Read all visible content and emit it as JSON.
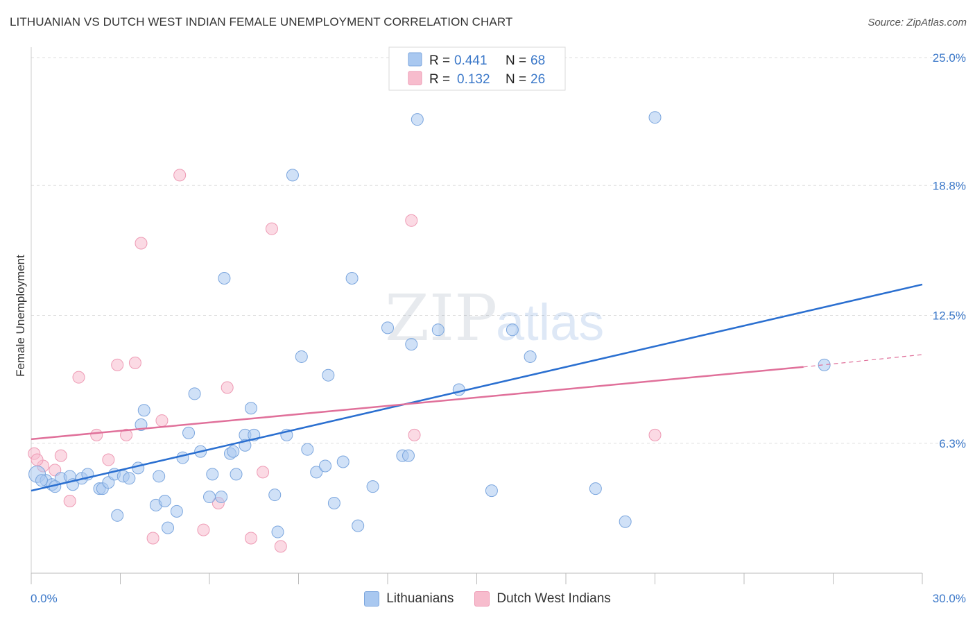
{
  "title": "LITHUANIAN VS DUTCH WEST INDIAN FEMALE UNEMPLOYMENT CORRELATION CHART",
  "source": "Source: ZipAtlas.com",
  "watermark": {
    "zip": "ZIP",
    "atlas": "atlas"
  },
  "legend": {
    "r_label": "R =",
    "n_label": "N =",
    "rows": [
      {
        "r": "0.441",
        "n": "68"
      },
      {
        "r": "0.132",
        "n": "26"
      }
    ]
  },
  "bottom_legend": [
    "Lithuanians",
    "Dutch West Indians"
  ],
  "colors": {
    "blue_fill": "#a9c8f0",
    "blue_stroke": "#7ba6de",
    "blue_line": "#2a6fd0",
    "pink_fill": "#f7bccd",
    "pink_stroke": "#ee9ab4",
    "pink_line": "#e0709a",
    "tick": "#3b78c9",
    "grid": "#dddddd"
  },
  "chart_data": {
    "type": "scatter",
    "title": "LITHUANIAN VS DUTCH WEST INDIAN FEMALE UNEMPLOYMENT CORRELATION CHART",
    "xlabel": "",
    "ylabel": "Female Unemployment",
    "xlim": [
      0,
      30
    ],
    "ylim": [
      0,
      25
    ],
    "x_tick_labels": [
      "0.0%",
      "30.0%"
    ],
    "y_ticks": [
      6.3,
      12.5,
      18.8,
      25.0
    ],
    "y_tick_labels": [
      "6.3%",
      "12.5%",
      "18.8%",
      "25.0%"
    ],
    "grid": "horizontal dashed",
    "legend_position": "top-center",
    "series": [
      {
        "name": "Lithuanians",
        "r": 0.441,
        "n": 68,
        "trend": {
          "x": [
            0,
            30
          ],
          "y": [
            4.0,
            14.0
          ]
        },
        "points": [
          [
            0.2,
            4.8
          ],
          [
            0.5,
            4.5
          ],
          [
            0.7,
            4.3
          ],
          [
            1.0,
            4.6
          ],
          [
            1.3,
            4.7
          ],
          [
            1.4,
            4.3
          ],
          [
            1.7,
            4.6
          ],
          [
            1.9,
            4.8
          ],
          [
            2.3,
            4.1
          ],
          [
            2.4,
            4.1
          ],
          [
            2.6,
            4.4
          ],
          [
            2.8,
            4.8
          ],
          [
            2.9,
            2.8
          ],
          [
            3.1,
            4.7
          ],
          [
            3.3,
            4.6
          ],
          [
            3.6,
            5.1
          ],
          [
            3.7,
            7.2
          ],
          [
            3.8,
            7.9
          ],
          [
            4.2,
            3.3
          ],
          [
            4.3,
            4.7
          ],
          [
            4.5,
            3.5
          ],
          [
            4.6,
            2.2
          ],
          [
            4.9,
            3.0
          ],
          [
            5.1,
            5.6
          ],
          [
            5.3,
            6.8
          ],
          [
            5.5,
            8.7
          ],
          [
            5.7,
            5.9
          ],
          [
            6.0,
            3.7
          ],
          [
            6.1,
            4.8
          ],
          [
            6.4,
            3.7
          ],
          [
            6.5,
            14.3
          ],
          [
            6.7,
            5.8
          ],
          [
            6.9,
            4.8
          ],
          [
            7.2,
            6.7
          ],
          [
            7.4,
            8.0
          ],
          [
            7.5,
            6.7
          ],
          [
            7.2,
            6.2
          ],
          [
            8.2,
            3.8
          ],
          [
            8.3,
            2.0
          ],
          [
            8.6,
            6.7
          ],
          [
            8.8,
            19.3
          ],
          [
            9.1,
            10.5
          ],
          [
            9.3,
            6.0
          ],
          [
            9.6,
            4.9
          ],
          [
            9.9,
            5.2
          ],
          [
            10.0,
            9.6
          ],
          [
            10.2,
            3.4
          ],
          [
            10.5,
            5.4
          ],
          [
            10.8,
            14.3
          ],
          [
            11.0,
            2.3
          ],
          [
            11.5,
            4.2
          ],
          [
            12.0,
            11.9
          ],
          [
            12.5,
            5.7
          ],
          [
            12.7,
            5.7
          ],
          [
            12.8,
            11.1
          ],
          [
            13.0,
            22.0
          ],
          [
            13.7,
            11.8
          ],
          [
            14.4,
            8.9
          ],
          [
            15.5,
            4.0
          ],
          [
            16.2,
            11.8
          ],
          [
            16.8,
            10.5
          ],
          [
            19.0,
            4.1
          ],
          [
            20.0,
            2.5
          ],
          [
            21.0,
            22.1
          ],
          [
            26.7,
            10.1
          ],
          [
            0.35,
            4.5
          ],
          [
            0.8,
            4.2
          ],
          [
            6.8,
            5.9
          ]
        ]
      },
      {
        "name": "Dutch West Indians",
        "r": 0.132,
        "n": 26,
        "trend": {
          "x": [
            0,
            26
          ],
          "y": [
            6.5,
            10.0
          ]
        },
        "trend_dashed": {
          "x": [
            26,
            30
          ],
          "y": [
            10.0,
            10.6
          ]
        },
        "points": [
          [
            0.1,
            5.8
          ],
          [
            0.4,
            5.2
          ],
          [
            0.8,
            5.0
          ],
          [
            1.0,
            5.7
          ],
          [
            1.3,
            3.5
          ],
          [
            1.6,
            9.5
          ],
          [
            2.2,
            6.7
          ],
          [
            2.6,
            5.5
          ],
          [
            2.9,
            10.1
          ],
          [
            3.2,
            6.7
          ],
          [
            3.5,
            10.2
          ],
          [
            3.7,
            16.0
          ],
          [
            4.1,
            1.7
          ],
          [
            4.4,
            7.4
          ],
          [
            5.0,
            19.3
          ],
          [
            5.8,
            2.1
          ],
          [
            6.3,
            3.4
          ],
          [
            6.6,
            9.0
          ],
          [
            7.4,
            1.7
          ],
          [
            7.8,
            4.9
          ],
          [
            8.1,
            16.7
          ],
          [
            8.4,
            1.3
          ],
          [
            12.8,
            17.1
          ],
          [
            12.9,
            6.7
          ],
          [
            21.0,
            6.7
          ],
          [
            0.2,
            5.5
          ]
        ]
      }
    ]
  }
}
